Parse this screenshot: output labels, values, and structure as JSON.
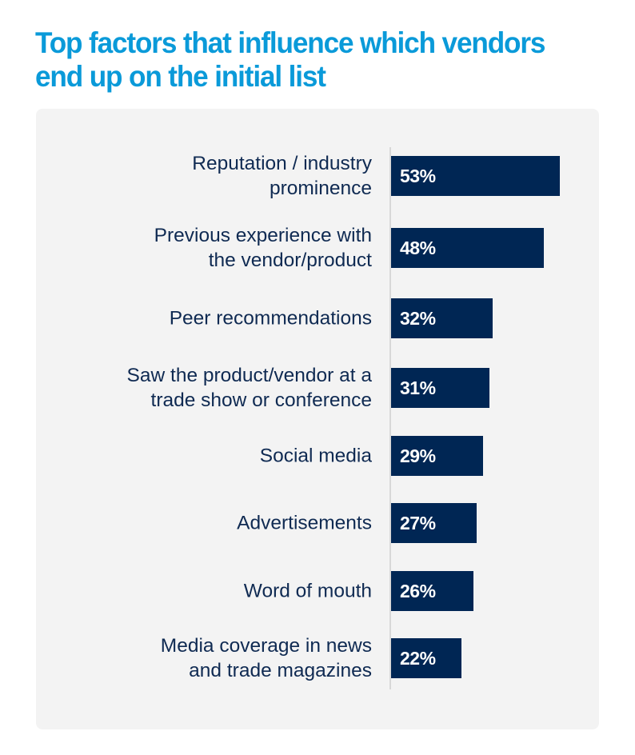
{
  "title": "Top factors that influence which vendors end up on the initial list",
  "colors": {
    "title": "#0a9ad9",
    "bar": "#002654",
    "label": "#0f2a52",
    "panel": "#f3f3f3",
    "axis": "#d8d8d8"
  },
  "rows": [
    {
      "label": "Reputation / industry\nprominence",
      "value": 53,
      "value_label": "53%"
    },
    {
      "label": "Previous experience with\nthe vendor/product",
      "value": 48,
      "value_label": "48%"
    },
    {
      "label": "Peer recommendations",
      "value": 32,
      "value_label": "32%"
    },
    {
      "label": "Saw the product/vendor at a\ntrade show or conference",
      "value": 31,
      "value_label": "31%"
    },
    {
      "label": "Social media",
      "value": 29,
      "value_label": "29%"
    },
    {
      "label": "Advertisements",
      "value": 27,
      "value_label": "27%"
    },
    {
      "label": "Word of mouth",
      "value": 26,
      "value_label": "26%"
    },
    {
      "label": "Media coverage in news\nand trade magazines",
      "value": 22,
      "value_label": "22%"
    }
  ],
  "chart_data": {
    "type": "bar",
    "orientation": "horizontal",
    "title": "Top factors that influence which vendors end up on the initial list",
    "categories": [
      "Reputation / industry prominence",
      "Previous experience with the vendor/product",
      "Peer recommendations",
      "Saw the product/vendor at a trade show or conference",
      "Social media",
      "Advertisements",
      "Word of mouth",
      "Media coverage in news and trade magazines"
    ],
    "values": [
      53,
      48,
      32,
      31,
      29,
      27,
      26,
      22
    ],
    "unit": "%",
    "xlabel": "",
    "ylabel": "",
    "grid": false,
    "legend": null,
    "data_labels": true
  }
}
